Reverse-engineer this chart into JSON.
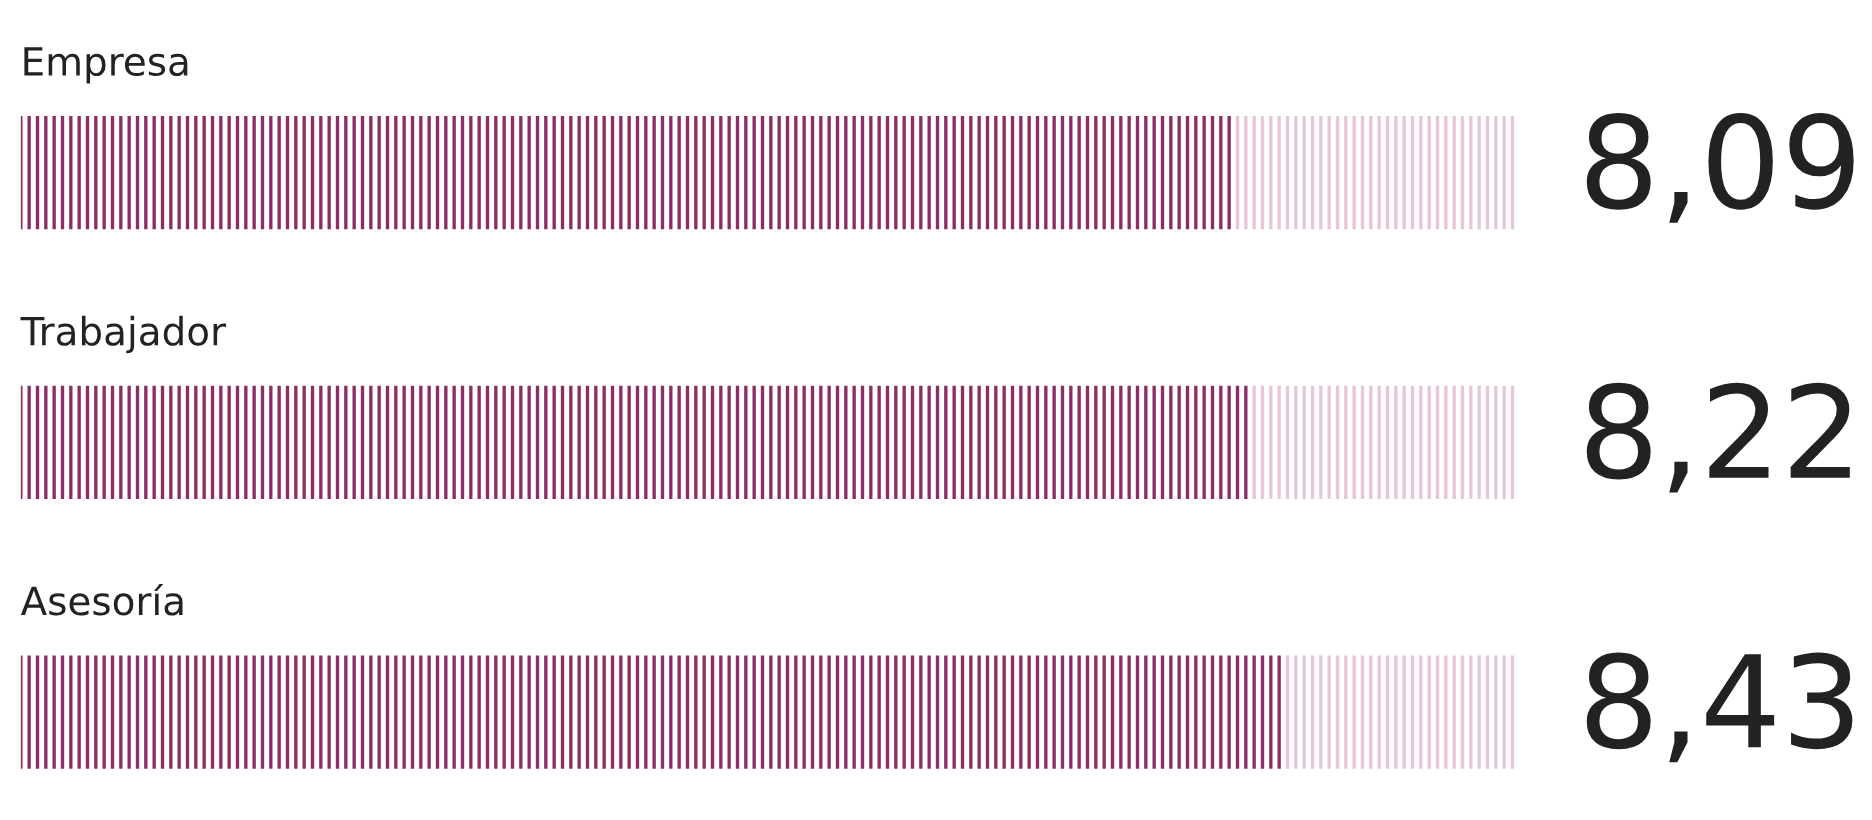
{
  "chart_data": {
    "type": "bar",
    "orientation": "horizontal",
    "stacked": true,
    "categories": [
      "Empresa",
      "Trabajador",
      "Asesoría"
    ],
    "series": [
      {
        "color": "#8c2d63",
        "values": [
          8.09,
          8.22,
          8.43
        ],
        "value_labels": [
          "8,09",
          "8,22",
          "8,43"
        ]
      },
      {
        "color": "#e6c6d8",
        "values": [
          1.91,
          1.78,
          1.57
        ]
      }
    ],
    "legend": false
  }
}
